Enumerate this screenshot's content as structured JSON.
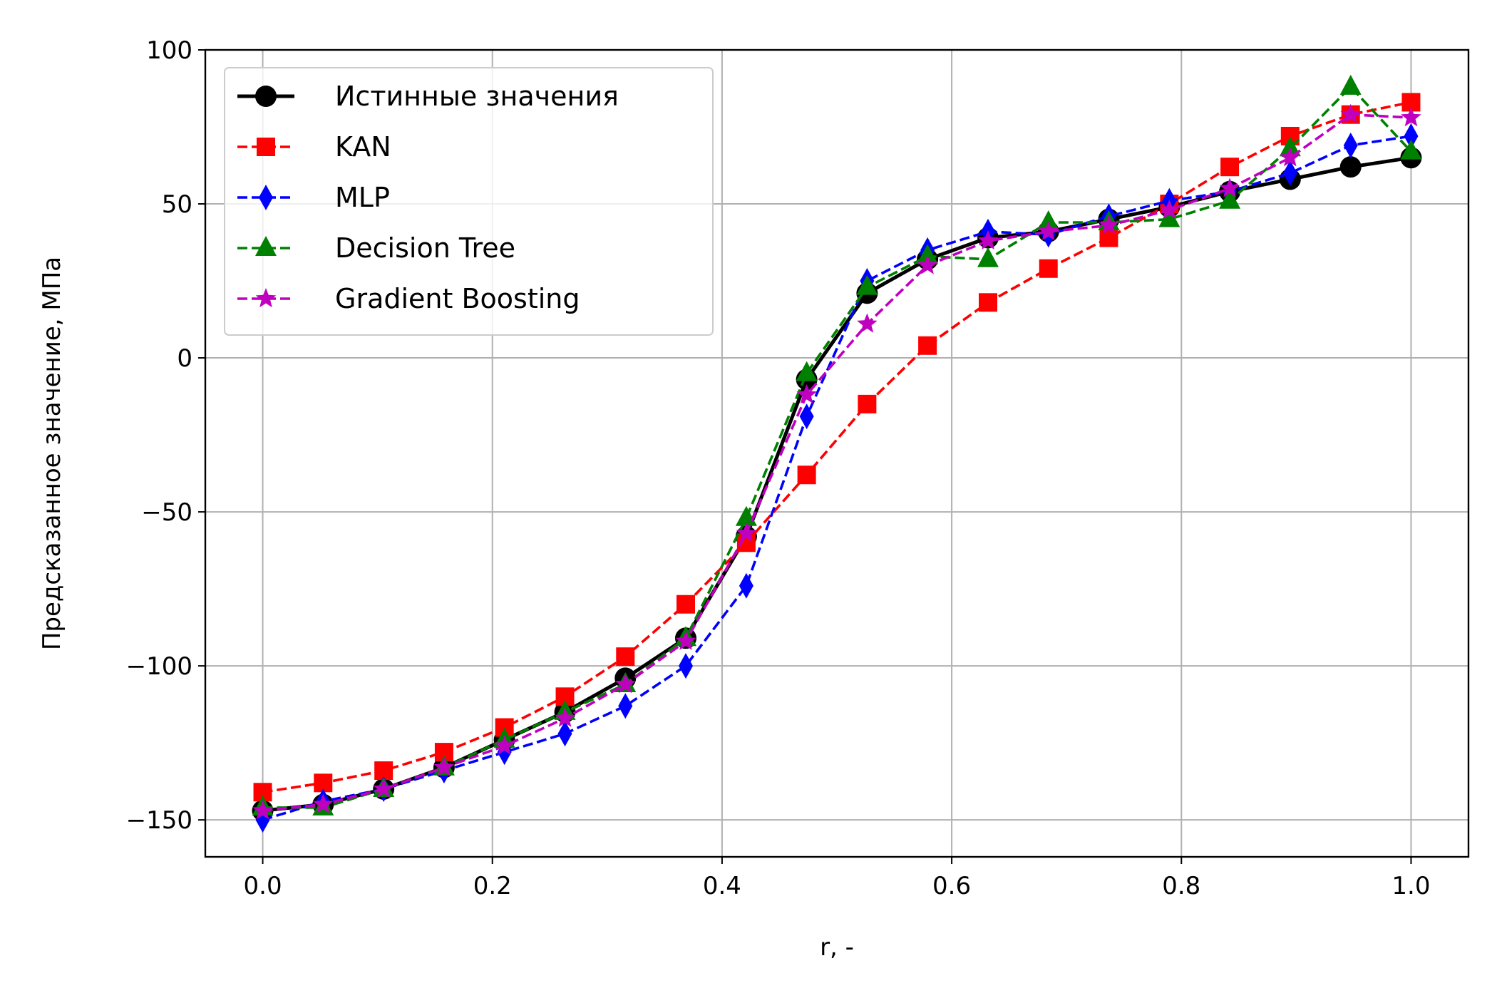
{
  "chart_data": {
    "type": "line",
    "title": "",
    "xlabel": "r, -",
    "ylabel": "Предсказанное значение, МПа",
    "xlim": [
      -0.05,
      1.05
    ],
    "ylim": [
      -162,
      100
    ],
    "xticks": [
      0.0,
      0.2,
      0.4,
      0.6,
      0.8,
      1.0
    ],
    "xtick_labels": [
      "0.0",
      "0.2",
      "0.4",
      "0.6",
      "0.8",
      "1.0"
    ],
    "yticks": [
      -150,
      -100,
      -50,
      0,
      50,
      100
    ],
    "ytick_labels": [
      "−150",
      "−100",
      "−50",
      "0",
      "50",
      "100"
    ],
    "grid": true,
    "legend_position": "top-left",
    "x": [
      0.0,
      0.0526,
      0.1053,
      0.1579,
      0.2105,
      0.2632,
      0.3158,
      0.3684,
      0.4211,
      0.4737,
      0.5263,
      0.5789,
      0.6316,
      0.6842,
      0.7368,
      0.7895,
      0.8421,
      0.8947,
      0.9474,
      1.0
    ],
    "series": [
      {
        "name": "Истинные значения",
        "color": "#000000",
        "linestyle": "solid",
        "marker": "circle",
        "values": [
          -147,
          -145,
          -140,
          -133,
          -124,
          -115,
          -104,
          -91,
          -58,
          -7,
          21,
          32,
          39,
          41,
          45,
          49,
          54,
          58,
          62,
          65
        ]
      },
      {
        "name": "KAN",
        "color": "#ff0000",
        "linestyle": "dashed",
        "marker": "square",
        "values": [
          -141,
          -138,
          -134,
          -128,
          -120,
          -110,
          -97,
          -80,
          -60,
          -38,
          -15,
          4,
          18,
          29,
          39,
          50,
          62,
          72,
          79,
          83
        ]
      },
      {
        "name": "MLP",
        "color": "#0000ff",
        "linestyle": "dashed",
        "marker": "diamond",
        "values": [
          -150,
          -144,
          -140,
          -134,
          -128,
          -122,
          -113,
          -100,
          -74,
          -19,
          25,
          35,
          41,
          40,
          46,
          51,
          54,
          60,
          69,
          72
        ]
      },
      {
        "name": "Decision Tree",
        "color": "#008000",
        "linestyle": "dashed",
        "marker": "triangle",
        "values": [
          -146,
          -146,
          -140,
          -133,
          -124,
          -115,
          -106,
          -91,
          -52,
          -5,
          23,
          33,
          32,
          44,
          44,
          45,
          51,
          68,
          88,
          67
        ]
      },
      {
        "name": "Gradient Boosting",
        "color": "#bf00bf",
        "linestyle": "dashed",
        "marker": "star",
        "values": [
          -147,
          -145,
          -140,
          -133,
          -126,
          -117,
          -106,
          -92,
          -57,
          -12,
          11,
          30,
          38,
          41,
          43,
          48,
          55,
          65,
          79,
          78
        ]
      }
    ]
  }
}
